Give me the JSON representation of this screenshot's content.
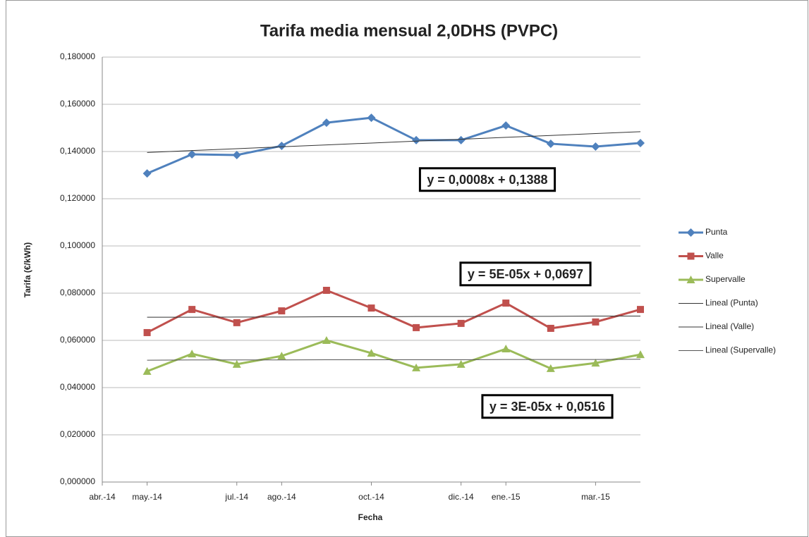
{
  "chart_data": {
    "type": "line",
    "title": "Tarifa media mensual 2,0DHS (PVPC)",
    "x_label": "Fecha",
    "y_label": "Tarifa (€/kWh)",
    "x": [
      "2014-05",
      "2014-06",
      "2014-07",
      "2014-08",
      "2014-09",
      "2014-10",
      "2014-11",
      "2014-12",
      "2015-01",
      "2015-02",
      "2015-03",
      "2015-04"
    ],
    "xlim": [
      "2014-04",
      "2015-04"
    ],
    "xticks": [
      {
        "value": "2014-04",
        "label": "abr.-14"
      },
      {
        "value": "2014-05",
        "label": "may.-14"
      },
      {
        "value": "2014-07",
        "label": "jul.-14"
      },
      {
        "value": "2014-08",
        "label": "ago.-14"
      },
      {
        "value": "2014-10",
        "label": "oct.-14"
      },
      {
        "value": "2014-12",
        "label": "dic.-14"
      },
      {
        "value": "2015-01",
        "label": "ene.-15"
      },
      {
        "value": "2015-03",
        "label": "mar.-15"
      }
    ],
    "ylim": [
      0,
      0.18
    ],
    "yticks": [
      {
        "value": 0,
        "label": "0,000000"
      },
      {
        "value": 0.02,
        "label": "0,020000"
      },
      {
        "value": 0.04,
        "label": "0,040000"
      },
      {
        "value": 0.06,
        "label": "0,060000"
      },
      {
        "value": 0.08,
        "label": "0,080000"
      },
      {
        "value": 0.1,
        "label": "0,100000"
      },
      {
        "value": 0.12,
        "label": "0,120000"
      },
      {
        "value": 0.14,
        "label": "0,140000"
      },
      {
        "value": 0.16,
        "label": "0,160000"
      },
      {
        "value": 0.18,
        "label": "0,180000"
      }
    ],
    "grid": true,
    "legend": "right",
    "series": [
      {
        "name": "Punta",
        "color": "#4f81bd",
        "marker": "diamond",
        "values": [
          0.1307,
          0.1388,
          0.1385,
          0.1424,
          0.1522,
          0.1543,
          0.1448,
          0.1448,
          0.151,
          0.1433,
          0.1421,
          0.1436
        ]
      },
      {
        "name": "Valle",
        "color": "#c0504d",
        "marker": "square",
        "values": [
          0.0633,
          0.0731,
          0.0675,
          0.0725,
          0.0812,
          0.0737,
          0.0654,
          0.0672,
          0.0758,
          0.0651,
          0.0678,
          0.0731
        ]
      },
      {
        "name": "Supervalle",
        "color": "#9bbb59",
        "marker": "triangle",
        "values": [
          0.0469,
          0.0543,
          0.0499,
          0.0534,
          0.06,
          0.0546,
          0.0484,
          0.0499,
          0.0564,
          0.0481,
          0.0504,
          0.054
        ]
      },
      {
        "name": "Lineal (Punta)",
        "color": "#333333",
        "marker": "none",
        "values": [
          0.1396,
          0.1404,
          0.1412,
          0.142,
          0.1428,
          0.1436,
          0.1444,
          0.1452,
          0.146,
          0.1468,
          0.1476,
          0.1484
        ]
      },
      {
        "name": "Lineal (Valle)",
        "color": "#333333",
        "marker": "none",
        "values": [
          0.0698,
          0.0698,
          0.0699,
          0.0699,
          0.07,
          0.07,
          0.0701,
          0.0701,
          0.0702,
          0.0702,
          0.0703,
          0.0703
        ]
      },
      {
        "name": "Lineal (Supervalle)",
        "color": "#555555",
        "marker": "none",
        "values": [
          0.0516,
          0.0517,
          0.0517,
          0.0517,
          0.0518,
          0.0518,
          0.0518,
          0.0518,
          0.0519,
          0.0519,
          0.0519,
          0.052
        ]
      }
    ],
    "annotations": [
      "y = 0,0008x + 0,1388",
      "y = 5E-05x + 0,0697",
      "y = 3E-05x + 0,0516"
    ]
  }
}
